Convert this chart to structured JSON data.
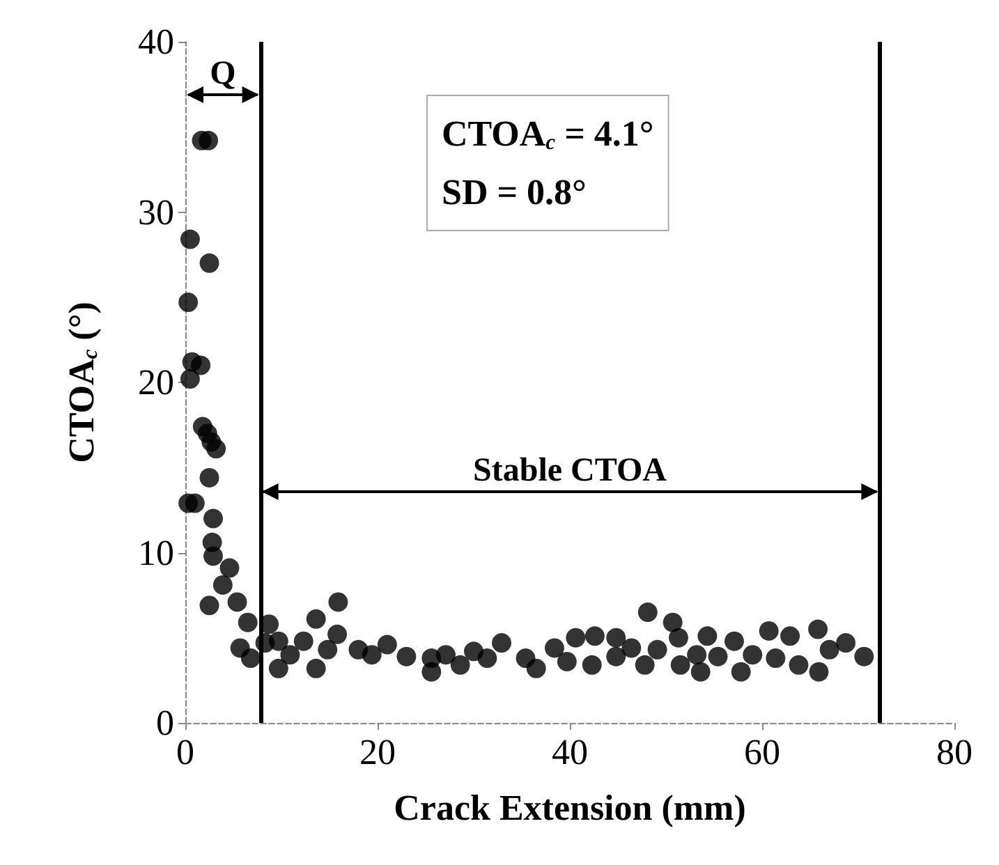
{
  "chart_data": {
    "type": "scatter",
    "xlabel": "Crack Extension (mm)",
    "ylabel": "CTOA$_{c}$ (°)",
    "xlim": [
      0,
      80
    ],
    "xticks": [
      0,
      20,
      40,
      60,
      80
    ],
    "ylim": [
      0,
      40
    ],
    "yticks": [
      0,
      10,
      20,
      30,
      40
    ],
    "grid": false,
    "marker": "circle",
    "series": [
      {
        "color": "#000000",
        "x": [
          1.7,
          2.4,
          0.5,
          2.5,
          0.3,
          0.7,
          1.6,
          0.5,
          1.8,
          2.3,
          2.7,
          3.2,
          0.3,
          1.0,
          2.5,
          2.9,
          2.8,
          2.9,
          4.6,
          3.9,
          2.5,
          5.4,
          6.5,
          8.7,
          5.7,
          6.8,
          8.3,
          9.7,
          9.7,
          10.9,
          12.3,
          13.6,
          15.9,
          15.8,
          14.8,
          13.6,
          18.0,
          19.4,
          21.0,
          23.0,
          25.6,
          25.6,
          27.1,
          28.6,
          30.0,
          31.4,
          32.9,
          35.4,
          36.5,
          38.4,
          39.7,
          40.6,
          42.3,
          42.6,
          44.8,
          44.8,
          46.4,
          48.1,
          47.8,
          49.1,
          50.7,
          51.3,
          51.5,
          53.2,
          53.6,
          54.3,
          55.4,
          57.1,
          57.8,
          59.0,
          60.7,
          61.4,
          62.9,
          63.8,
          65.8,
          65.9,
          67.0,
          68.7,
          70.6
        ],
        "values": [
          34.2,
          34.2,
          28.4,
          27.0,
          24.7,
          21.2,
          21.0,
          20.2,
          17.4,
          17.0,
          16.5,
          16.1,
          12.9,
          12.9,
          14.4,
          12.0,
          10.6,
          9.8,
          9.1,
          8.1,
          6.9,
          7.1,
          5.9,
          5.8,
          4.4,
          3.8,
          4.7,
          4.8,
          3.2,
          4.0,
          4.8,
          6.1,
          7.1,
          5.2,
          4.3,
          3.2,
          4.3,
          4.0,
          4.6,
          3.9,
          3.0,
          3.8,
          4.0,
          3.4,
          4.2,
          3.8,
          4.7,
          3.8,
          3.2,
          4.4,
          3.6,
          5.0,
          3.4,
          5.1,
          5.0,
          3.9,
          4.4,
          6.5,
          3.4,
          4.3,
          5.9,
          5.0,
          3.4,
          4.0,
          3.0,
          5.1,
          3.9,
          4.8,
          3.0,
          4.0,
          5.4,
          3.8,
          5.1,
          3.4,
          5.5,
          3.0,
          4.3,
          4.7,
          3.9
        ]
      }
    ],
    "ref_lines": [
      {
        "axis": "x",
        "value": 7.8,
        "label": null,
        "color": "#000000"
      },
      {
        "axis": "x",
        "value": 72.2,
        "label": null,
        "color": "#000000"
      }
    ],
    "annotations": [
      "Q",
      "Stable CTOA",
      "CTOA$_{c}$ = 4.1°",
      "SD = 0.8°"
    ]
  }
}
